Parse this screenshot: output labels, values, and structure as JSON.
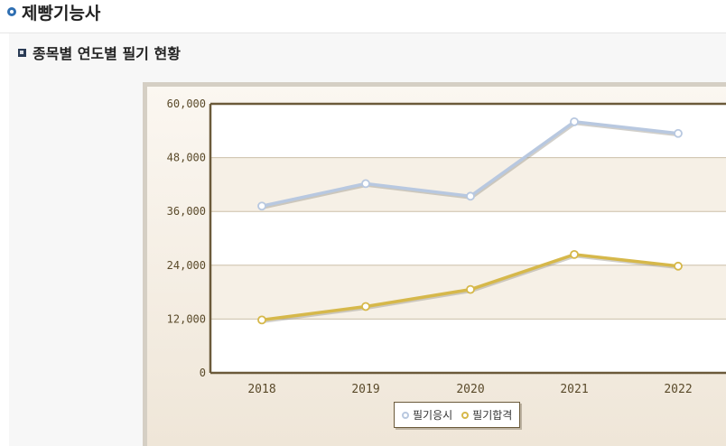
{
  "page": {
    "title": "제빵기능사"
  },
  "section": {
    "title": "종목별 연도별 필기 현황"
  },
  "colors": {
    "applicants": "#b8c8e0",
    "passers": "#d6b84a",
    "plot_border": "#6b5a3a",
    "grid": "#cbbfa8"
  },
  "chart_data": {
    "type": "line",
    "categories": [
      "2018",
      "2019",
      "2020",
      "2021",
      "2022"
    ],
    "series": [
      {
        "name": "필기응시",
        "values": [
          37200,
          42200,
          39400,
          56000,
          53400
        ]
      },
      {
        "name": "필기합격",
        "values": [
          11800,
          14800,
          18600,
          26400,
          23800
        ]
      }
    ],
    "ylim": [
      0,
      60000
    ],
    "yticks": [
      "60,000",
      "48,000",
      "36,000",
      "24,000",
      "12,000",
      "0"
    ],
    "grid": true,
    "legend": "bottom-center"
  }
}
